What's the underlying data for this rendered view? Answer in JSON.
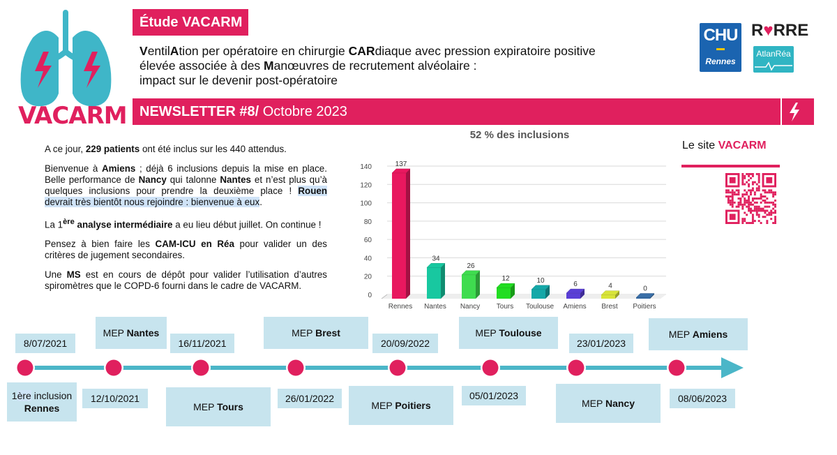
{
  "logo": {
    "text": "VACARM",
    "icon": "lungs-bolt-icon"
  },
  "header": {
    "study_label": "Étude VACARM",
    "title_lines": [
      [
        [
          "V",
          true
        ],
        [
          "entil",
          false
        ],
        [
          "A",
          true
        ],
        [
          "tion per opératoire en chirurgie ",
          false
        ],
        [
          "CAR",
          true
        ],
        [
          "diaque avec pression expiratoire positive",
          false
        ]
      ],
      [
        [
          "élevée associée à des ",
          false
        ],
        [
          "M",
          true
        ],
        [
          "anœuvres de recrutement alvéolaire :",
          false
        ]
      ],
      [
        [
          "impact sur le devenir post-opératoire",
          false
        ]
      ]
    ],
    "newsletter_bold": "NEWSLETTER #8/",
    "newsletter_date": " Octobre 2023",
    "bolt_icon": "lightning-bolt-icon"
  },
  "partners": {
    "chu": "CHU",
    "chu_city": "Rennes",
    "rvrre": "RVRRE",
    "atlan": "AtlanRéa"
  },
  "body": {
    "paragraphs": [
      [
        [
          "A ce jour, ",
          false
        ],
        [
          "229 patients",
          true
        ],
        [
          " ont été inclus sur les 440 attendus.",
          false
        ]
      ],
      [
        [
          "Bienvenue à ",
          false
        ],
        [
          "Amiens",
          true
        ],
        [
          " ; déjà 6 inclusions depuis la mise en place. Belle performance de ",
          false
        ],
        [
          "Nancy",
          true
        ],
        [
          " qui talonne ",
          false
        ],
        [
          "Nantes",
          true
        ],
        [
          " et n’est plus qu’à quelques inclusions pour prendre la deuxième place ! ",
          false
        ],
        [
          "Rouen",
          true,
          true
        ],
        [
          " devrait très bientôt nous rejoindre : bienvenue à eux",
          false,
          true
        ],
        [
          ".",
          false
        ]
      ],
      [
        [
          "La 1",
          false
        ],
        [
          "ère",
          true,
          false,
          true
        ],
        [
          " analyse intermédiaire",
          true
        ],
        [
          " a eu lieu début juillet. On continue !",
          false
        ]
      ],
      [
        [
          "Pensez à bien faire les ",
          false
        ],
        [
          "CAM-ICU en Réa",
          true
        ],
        [
          " pour valider un des critères de jugement secondaires.",
          false
        ]
      ],
      [
        [
          "Une ",
          false
        ],
        [
          "MS",
          true
        ],
        [
          " est en cours de dépôt pour valider l’utilisation d’autres spiromètres que le COPD-6 fourni dans le cadre de VACARM.",
          false
        ]
      ]
    ]
  },
  "chart_data": {
    "type": "bar",
    "title": "52 % des inclusions",
    "categories": [
      "Rennes",
      "Nantes",
      "Nancy",
      "Tours",
      "Toulouse",
      "Amiens",
      "Brest",
      "Poitiers"
    ],
    "values": [
      137,
      34,
      26,
      12,
      10,
      6,
      4,
      0
    ],
    "colors": [
      "#e8185f",
      "#18c8a0",
      "#3fdc4f",
      "#22dd22",
      "#14a8a8",
      "#5a3fd6",
      "#d8e43a",
      "#3a6fa8"
    ],
    "ylim": [
      0,
      140
    ],
    "yticks": [
      0,
      20,
      40,
      60,
      80,
      100,
      120,
      140
    ],
    "xlabel": "",
    "ylabel": "",
    "grid": true,
    "style": "3d"
  },
  "site": {
    "label_prefix": "Le site ",
    "label_brand": "VACARM",
    "qr_icon": "qr-code-icon"
  },
  "timeline": {
    "line_color": "#4bb6c8",
    "dot_color": "#e0205e",
    "events": [
      {
        "top_label": "8/07/2021",
        "bottom_label": "",
        "bottom_parts": [
          [
            "1",
            false
          ],
          [
            "ère",
            false,
            true
          ],
          [
            " inclusion",
            false
          ],
          [
            "Rennes",
            true,
            false,
            false,
            true
          ]
        ]
      },
      {
        "top_parts": [
          [
            "MEP ",
            false
          ],
          [
            "Nantes",
            true
          ]
        ],
        "bottom_label": "12/10/2021"
      },
      {
        "top_label": "16/11/2021",
        "bottom_parts": [
          [
            "MEP ",
            false
          ],
          [
            "Tours",
            true
          ]
        ]
      },
      {
        "top_parts": [
          [
            "MEP ",
            false
          ],
          [
            "Brest",
            true
          ]
        ],
        "bottom_label": "26/01/2022"
      },
      {
        "top_label": "20/09/2022",
        "bottom_parts": [
          [
            "MEP ",
            false
          ],
          [
            "Poitiers",
            true
          ]
        ]
      },
      {
        "top_parts": [
          [
            "MEP ",
            false
          ],
          [
            "Toulouse",
            true
          ]
        ],
        "bottom_label": "05/01/2023"
      },
      {
        "top_label": "23/01/2023",
        "bottom_parts": [
          [
            "MEP ",
            false
          ],
          [
            "Nancy",
            true
          ]
        ]
      },
      {
        "top_parts": [
          [
            "MEP ",
            false
          ],
          [
            "Amiens",
            true
          ]
        ],
        "bottom_label": "08/06/2023"
      }
    ]
  }
}
